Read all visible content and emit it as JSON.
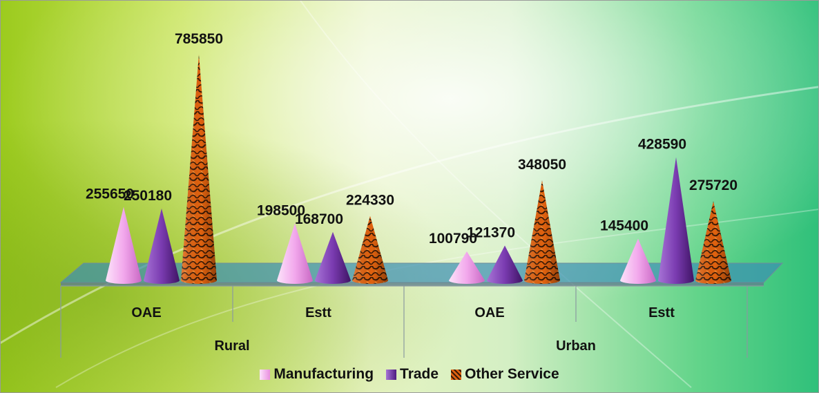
{
  "chart_data": {
    "type": "bar",
    "style": "3d-cone",
    "groups": [
      {
        "name": "Rural",
        "categories": [
          "OAE",
          "Estt"
        ]
      },
      {
        "name": "Urban",
        "categories": [
          "OAE",
          "Estt"
        ]
      }
    ],
    "series": [
      {
        "name": "Manufacturing",
        "color": "#f0a0e8",
        "values": [
          255650,
          198500,
          100790,
          145400
        ]
      },
      {
        "name": "Trade",
        "color": "#7a3bb0",
        "values": [
          250180,
          168700,
          121370,
          428590
        ]
      },
      {
        "name": "Other Service",
        "color": "#d9550f",
        "values": [
          785850,
          224330,
          348050,
          275720
        ]
      }
    ],
    "data_labels": true,
    "legend_position": "bottom",
    "ylim": [
      0,
      800000
    ]
  }
}
